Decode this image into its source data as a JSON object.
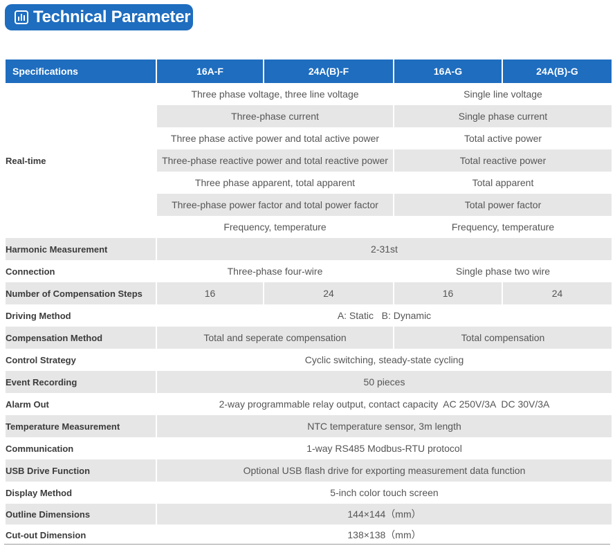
{
  "title": "Technical Parameter",
  "header": {
    "specifications": "Specifications",
    "col1": "16A-F",
    "col2": "24A(B)-F",
    "col3": "16A-G",
    "col4": "24A(B)-G"
  },
  "realtime": {
    "label": "Real-time",
    "rows": [
      {
        "f": "Three phase voltage, three line voltage",
        "g": "Single line voltage"
      },
      {
        "f": "Three-phase current",
        "g": "Single phase current"
      },
      {
        "f": "Three phase active power and total active power",
        "g": "Total active power"
      },
      {
        "f": "Three-phase reactive power and total reactive power",
        "g": "Total reactive power"
      },
      {
        "f": "Three phase apparent, total apparent",
        "g": "Total apparent"
      },
      {
        "f": "Three-phase power factor and total power factor",
        "g": "Total power factor"
      },
      {
        "f": "Frequency, temperature",
        "g": "Frequency, temperature"
      }
    ]
  },
  "harmonic": {
    "label": "Harmonic Measurement",
    "value": "2-31st"
  },
  "connection": {
    "label": "Connection",
    "f": "Three-phase four-wire",
    "g": "Single phase two wire"
  },
  "steps": {
    "label": "Number of Compensation Steps",
    "v1": "16",
    "v2": "24",
    "v3": "16",
    "v4": "24"
  },
  "driving": {
    "label": "Driving Method",
    "value": "A: Static   B: Dynamic"
  },
  "compensation": {
    "label": "Compensation Method",
    "f": "Total and seperate compensation",
    "g": "Total compensation"
  },
  "control": {
    "label": "Control Strategy",
    "value": "Cyclic switching, steady-state cycling"
  },
  "event": {
    "label": "Event Recording",
    "value": "50 pieces"
  },
  "alarm": {
    "label": "Alarm Out",
    "value": "2-way programmable relay output, contact capacity  AC 250V/3A  DC 30V/3A"
  },
  "temperature": {
    "label": "Temperature Measurement",
    "value": "NTC temperature sensor, 3m length"
  },
  "communication": {
    "label": "Communication",
    "value": "1-way RS485 Modbus-RTU protocol"
  },
  "usb": {
    "label": "USB Drive Function",
    "value": "Optional USB flash drive for exporting measurement data function"
  },
  "display": {
    "label": "Display Method",
    "value": "5-inch color touch screen"
  },
  "outline": {
    "label": "Outline Dimensions",
    "value": "144×144（mm）"
  },
  "cutout": {
    "label": "Cut-out Dimension",
    "value": "138×138（mm）"
  }
}
